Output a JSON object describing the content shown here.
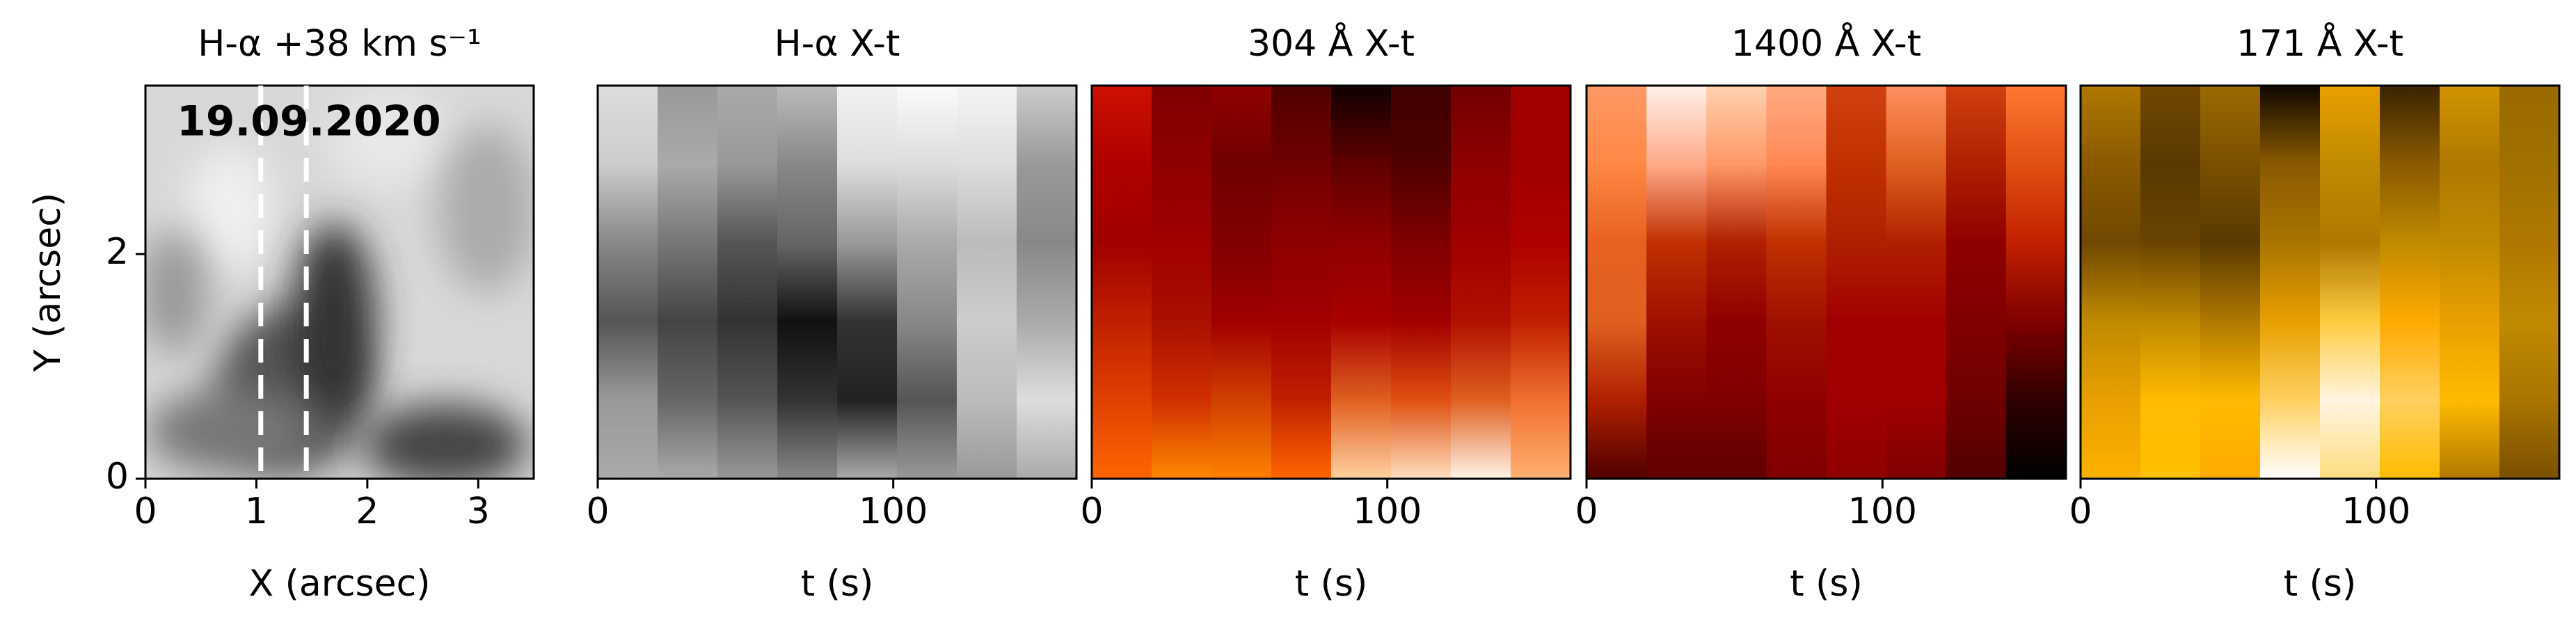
{
  "chart_data": [
    {
      "type": "image",
      "title": "H-α +38 km s⁻¹",
      "xlabel": "X (arcsec)",
      "ylabel": "Y (arcsec)",
      "xlim": [
        0,
        3.5
      ],
      "ylim": [
        0,
        3.5
      ],
      "xticks": [
        0,
        1,
        2,
        3
      ],
      "yticks": [
        0,
        2
      ],
      "annotation": "19.09.2020",
      "annotation_color": "#ffff00",
      "vlines": [
        1.04,
        1.45
      ]
    },
    {
      "type": "image",
      "title": "H-α X-t",
      "xlabel": "t (s)",
      "xlim": [
        0,
        162
      ],
      "ylim": [
        0,
        3.5
      ],
      "xticks": [
        0,
        100
      ]
    },
    {
      "type": "image",
      "title": "304 Å X-t",
      "xlabel": "t (s)",
      "xlim": [
        0,
        162
      ],
      "ylim": [
        0,
        3.5
      ],
      "xticks": [
        0,
        100
      ]
    },
    {
      "type": "image",
      "title": "1400 Å X-t",
      "xlabel": "t (s)",
      "xlim": [
        0,
        162
      ],
      "ylim": [
        0,
        3.5
      ],
      "xticks": [
        0,
        100
      ]
    },
    {
      "type": "image",
      "title": "171 Å X-t",
      "xlabel": "t (s)",
      "xlim": [
        0,
        162
      ],
      "ylim": [
        0,
        3.5
      ],
      "xticks": [
        0,
        100
      ]
    }
  ]
}
